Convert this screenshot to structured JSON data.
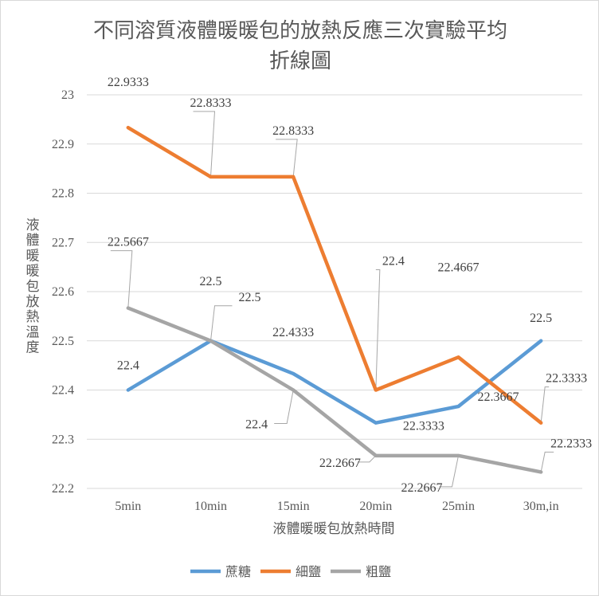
{
  "chart_data": {
    "type": "line",
    "title": "不同溶質液體暖暖包的放熱反應三次實驗平均折線圖",
    "title_lines": [
      "不同溶質液體暖暖包的放熱反應三次實驗平均",
      "折線圖"
    ],
    "xlabel": "液體暖暖包放熱時間",
    "ylabel": "液體暖暖包放熱溫度",
    "categories": [
      "5min",
      "10min",
      "15min",
      "20min",
      "25min",
      "30m,in"
    ],
    "ylim": [
      22.2,
      23
    ],
    "yticks": [
      "22.2",
      "22.3",
      "22.4",
      "22.5",
      "22.6",
      "22.7",
      "22.8",
      "22.9",
      "23"
    ],
    "grid": true,
    "legend_position": "bottom",
    "series": [
      {
        "name": "蔗糖",
        "color": "#5b9bd5",
        "values": [
          22.4,
          22.5,
          22.4333,
          22.3333,
          22.3667,
          22.5
        ],
        "labels": [
          "22.4",
          "22.5",
          "22.4333",
          "22.3333",
          "22.3667",
          "22.5"
        ]
      },
      {
        "name": "細鹽",
        "color": "#ed7d31",
        "values": [
          22.9333,
          22.8333,
          22.8333,
          22.4,
          22.4667,
          22.3333
        ],
        "labels": [
          "22.9333",
          "22.8333",
          "22.8333",
          "22.4",
          "22.4667",
          "22.3333"
        ]
      },
      {
        "name": "粗鹽",
        "color": "#a5a5a5",
        "values": [
          22.5667,
          22.5,
          22.4,
          22.2667,
          22.2667,
          22.2333
        ],
        "labels": [
          "22.5667",
          "22.5",
          "22.4",
          "22.2667",
          "22.2667",
          "22.2333"
        ]
      }
    ]
  }
}
